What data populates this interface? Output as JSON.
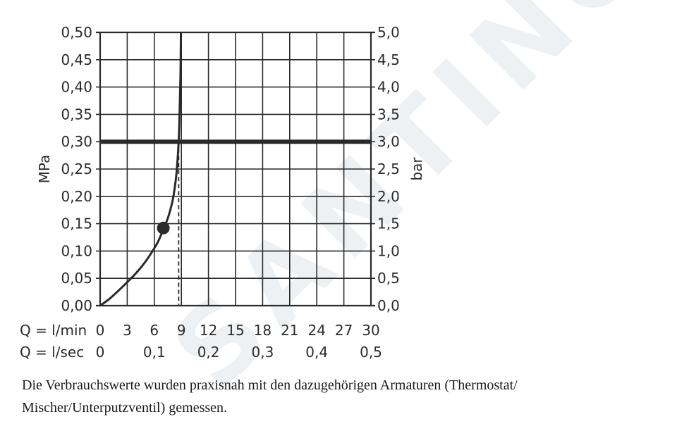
{
  "chart_data": {
    "type": "line",
    "title": "",
    "y_left": {
      "label": "MPa",
      "range": [
        0,
        0.5
      ],
      "ticks": [
        "0,00",
        "0,05",
        "0,10",
        "0,15",
        "0,20",
        "0,25",
        "0,30",
        "0,35",
        "0,40",
        "0,45",
        "0,50"
      ]
    },
    "y_right": {
      "label": "bar",
      "range": [
        0,
        5
      ],
      "ticks": [
        "0,0",
        "0,5",
        "1,0",
        "1,5",
        "2,0",
        "2,5",
        "3,0",
        "3,5",
        "4,0",
        "4,5",
        "5,0"
      ]
    },
    "x_primary": {
      "label": "Q = l/min",
      "range": [
        0,
        30
      ],
      "ticks": [
        "0",
        "3",
        "6",
        "9",
        "12",
        "15",
        "18",
        "21",
        "24",
        "27",
        "30"
      ]
    },
    "x_secondary": {
      "label": "Q = l/sec",
      "ticks": [
        {
          "value": 0,
          "label": "0"
        },
        {
          "value": 0.1,
          "label": "0,1"
        },
        {
          "value": 0.2,
          "label": "0,2"
        },
        {
          "value": 0.3,
          "label": "0,3"
        },
        {
          "value": 0.4,
          "label": "0,4"
        },
        {
          "value": 0.5,
          "label": "0,5"
        }
      ]
    },
    "grid": true,
    "series": [
      {
        "x": [
          0,
          1,
          2,
          3,
          4,
          5,
          6,
          6.5,
          7,
          7.5,
          8,
          8.3,
          8.5,
          8.7,
          8.8,
          8.9,
          8.95
        ],
        "y": [
          0,
          0.012,
          0.027,
          0.043,
          0.06,
          0.08,
          0.105,
          0.12,
          0.14,
          0.16,
          0.19,
          0.22,
          0.25,
          0.3,
          0.35,
          0.42,
          0.5
        ]
      }
    ],
    "reference_line_y": 0.3,
    "marker_point": {
      "x": 7.0,
      "y": 0.142
    },
    "dashed_x": 8.7
  },
  "note": "Die Verbrauchswerte wurden praxisnah mit den dazugehörigen Armaturen (Thermostat/ Mischer/Unterputzventil) gemessen.",
  "watermark_text": "SANTINO",
  "colors": {
    "line": "#2a2a2a",
    "grid": "#2a2a2a",
    "watermark": "#eef1f5"
  }
}
